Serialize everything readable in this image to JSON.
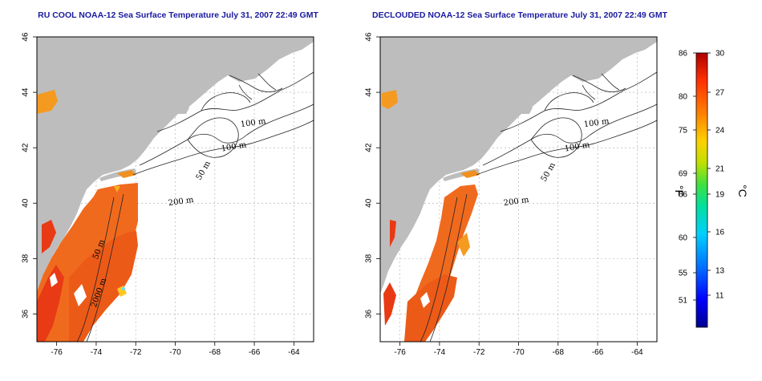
{
  "maps": [
    {
      "id": "left",
      "title": "RU COOL NOAA-12 Sea Surface Temperature July 31, 2007 22:49 GMT",
      "variant": "raw",
      "x_ticks": [
        "-76",
        "-74",
        "-72",
        "-70",
        "-68",
        "-66",
        "-64"
      ],
      "y_ticks": [
        "36",
        "38",
        "40",
        "42",
        "44",
        "46"
      ],
      "contour_labels": [
        "100 m",
        "100 m",
        "50 m",
        "200 m",
        "50 m",
        "2000 m"
      ]
    },
    {
      "id": "right",
      "title": "DECLOUDED NOAA-12 Sea Surface Temperature July 31, 2007 22:49 GMT",
      "variant": "declouded",
      "x_ticks": [
        "-76",
        "-74",
        "-72",
        "-70",
        "-68",
        "-66",
        "-64"
      ],
      "y_ticks": [
        "36",
        "38",
        "40",
        "42",
        "44",
        "46"
      ],
      "contour_labels": [
        "100 m",
        "100 m",
        "50 m",
        "200 m"
      ]
    }
  ],
  "colorbar": {
    "fahrenheit_label": "°F",
    "celsius_label": "°C",
    "fahrenheit_ticks": [
      "86",
      "80",
      "75",
      "69",
      "66",
      "60",
      "55",
      "51"
    ],
    "celsius_ticks": [
      "30",
      "27",
      "24",
      "21",
      "19",
      "16",
      "13",
      "11"
    ],
    "colors": [
      "#000090",
      "#0000ff",
      "#0070ff",
      "#00d0ff",
      "#00e0a0",
      "#40e040",
      "#c0e000",
      "#ffd000",
      "#ff8000",
      "#ff3000",
      "#b00000"
    ]
  },
  "colors": {
    "land": "#bdbdbd",
    "ocean": "#ffffff",
    "title": "#1a1aa0",
    "sst_warm": "#f06a1e",
    "sst_hot": "#e83a14",
    "sst_mid": "#f59a20"
  }
}
